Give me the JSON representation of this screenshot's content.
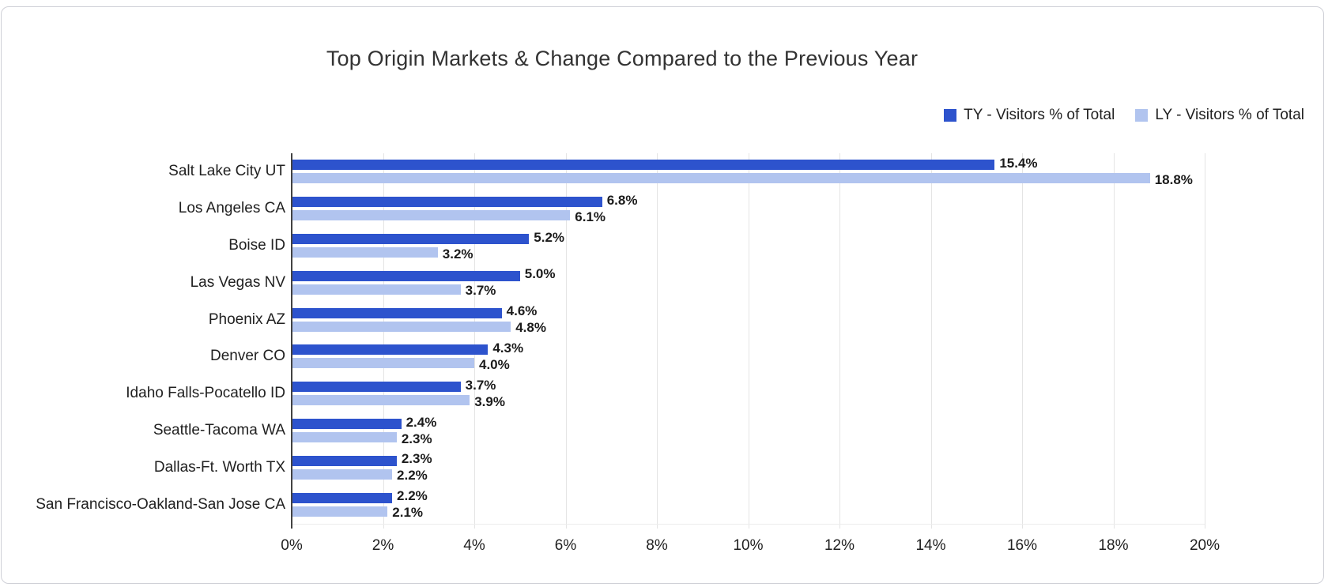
{
  "page": {
    "background_color": "#ffffff",
    "card_border_color": "#cfd0d7"
  },
  "chart_data": {
    "type": "bar",
    "orientation": "horizontal",
    "title": "Top Origin Markets & Change Compared to the Previous Year",
    "categories": [
      "Salt Lake City UT",
      "Los Angeles CA",
      "Boise ID",
      "Las Vegas NV",
      "Phoenix AZ",
      "Denver CO",
      "Idaho Falls-Pocatello ID",
      "Seattle-Tacoma WA",
      "Dallas-Ft. Worth TX",
      "San Francisco-Oakland-San Jose CA"
    ],
    "series": [
      {
        "name": "TY - Visitors % of Total",
        "color": "#2d53cd",
        "values": [
          15.4,
          6.8,
          5.2,
          5.0,
          4.6,
          4.3,
          3.7,
          2.4,
          2.3,
          2.2
        ]
      },
      {
        "name": "LY - Visitors % of Total",
        "color": "#b1c4ef",
        "values": [
          18.8,
          6.1,
          3.2,
          3.7,
          4.8,
          4.0,
          3.9,
          2.3,
          2.2,
          2.1
        ]
      }
    ],
    "value_suffix": "%",
    "value_decimals": 1,
    "xlim": [
      0,
      20
    ],
    "x_ticks": [
      "0%",
      "2%",
      "4%",
      "6%",
      "8%",
      "10%",
      "12%",
      "14%",
      "16%",
      "18%",
      "20%"
    ],
    "grid": true,
    "legend_position": "top-right",
    "text_colors": {
      "title": "#333333",
      "labels": "#212121",
      "bar_values": "#1b1b1b"
    }
  }
}
